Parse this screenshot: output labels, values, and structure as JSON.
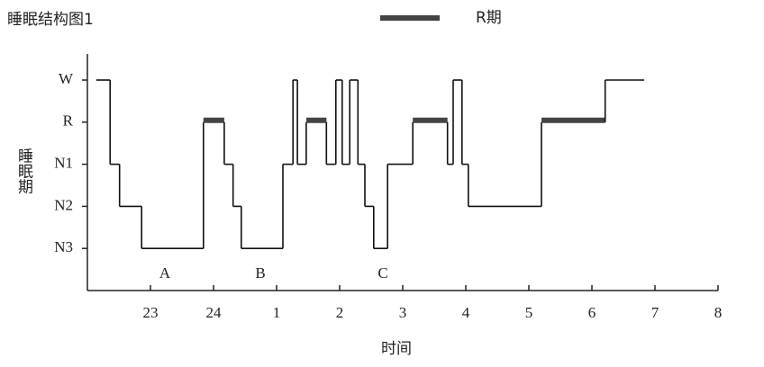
{
  "chart_data": {
    "type": "step",
    "title": "睡眠结构图1",
    "x_label": "时间",
    "y_label": "睡眠期",
    "legend": {
      "name": "R期",
      "color": "#444"
    },
    "annotations": [
      "A",
      "B",
      "C"
    ],
    "xlim": [
      22,
      32
    ],
    "xticks": [
      {
        "value": 23,
        "label": "23"
      },
      {
        "value": 24,
        "label": "24"
      },
      {
        "value": 25,
        "label": "1"
      },
      {
        "value": 26,
        "label": "2"
      },
      {
        "value": 27,
        "label": "3"
      },
      {
        "value": 28,
        "label": "4"
      },
      {
        "value": 29,
        "label": "5"
      },
      {
        "value": 30,
        "label": "6"
      },
      {
        "value": 31,
        "label": "7"
      },
      {
        "value": 32,
        "label": "8"
      }
    ],
    "ylim": [
      0,
      5.5
    ],
    "yticks": [
      {
        "value": 5,
        "label": "W"
      },
      {
        "value": 4,
        "label": "R"
      },
      {
        "value": 3,
        "label": "N1"
      },
      {
        "value": 2,
        "label": "N2"
      },
      {
        "value": 1,
        "label": "N3"
      }
    ],
    "rem_value": 4,
    "color": "#111",
    "x": [
      22.14,
      22.36,
      22.51,
      22.86,
      23.84,
      24.17,
      24.31,
      24.44,
      25.1,
      25.26,
      25.33,
      25.47,
      25.79,
      25.94,
      26.04,
      26.16,
      26.29,
      26.4,
      26.54,
      26.76,
      27.16,
      27.71,
      27.8,
      27.94,
      28.04,
      29.2,
      30.21,
      30.83
    ],
    "values": [
      5,
      3,
      2,
      1,
      4,
      3,
      2,
      1,
      3,
      5,
      3,
      4,
      3,
      5,
      3,
      5,
      3,
      2,
      1,
      3,
      4,
      3,
      5,
      3,
      2,
      4,
      5,
      5
    ]
  }
}
